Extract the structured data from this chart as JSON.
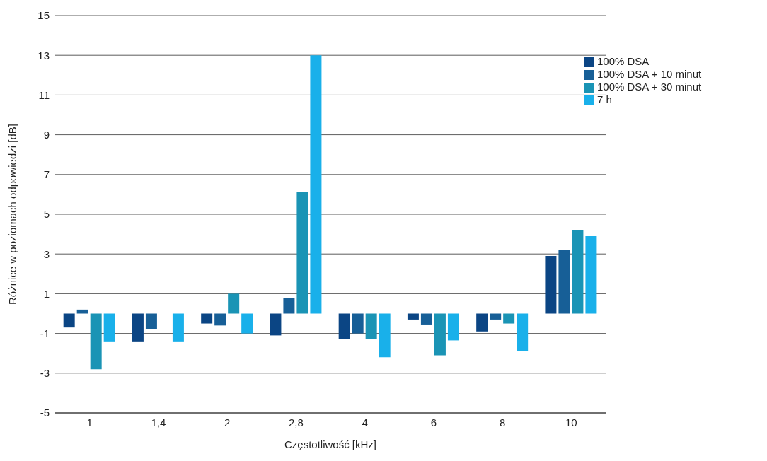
{
  "chart_data": {
    "type": "bar",
    "xlabel": "Częstotliwość [kHz]",
    "ylabel": "Różnice w poziomach odpowiedzi [dB]",
    "categories": [
      "1",
      "1,4",
      "2",
      "2,8",
      "4",
      "6",
      "8",
      "10"
    ],
    "series": [
      {
        "name": "100% DSA",
        "color": "#0b4584",
        "values": [
          -0.7,
          -1.4,
          -0.5,
          -1.1,
          -1.3,
          -0.3,
          -0.9,
          2.9
        ]
      },
      {
        "name": "100% DSA + 10 minut",
        "color": "#175f97",
        "values": [
          0.2,
          -0.8,
          -0.6,
          0.8,
          -1.0,
          -0.55,
          -0.3,
          3.2
        ]
      },
      {
        "name": "100% DSA + 30 minut",
        "color": "#1a94b5",
        "values": [
          -2.8,
          null,
          1.0,
          6.1,
          -1.3,
          -2.1,
          -0.5,
          4.2
        ]
      },
      {
        "name": "7 h",
        "color": "#19b0ea",
        "values": [
          -1.4,
          -1.4,
          -1.0,
          13,
          -2.2,
          -1.35,
          -1.9,
          3.9
        ]
      }
    ],
    "ylim": [
      -5,
      15
    ],
    "yticks": [
      -5,
      -3,
      -1,
      1,
      3,
      5,
      7,
      9,
      11,
      13,
      15
    ],
    "grid": "y",
    "legend": "top right"
  }
}
